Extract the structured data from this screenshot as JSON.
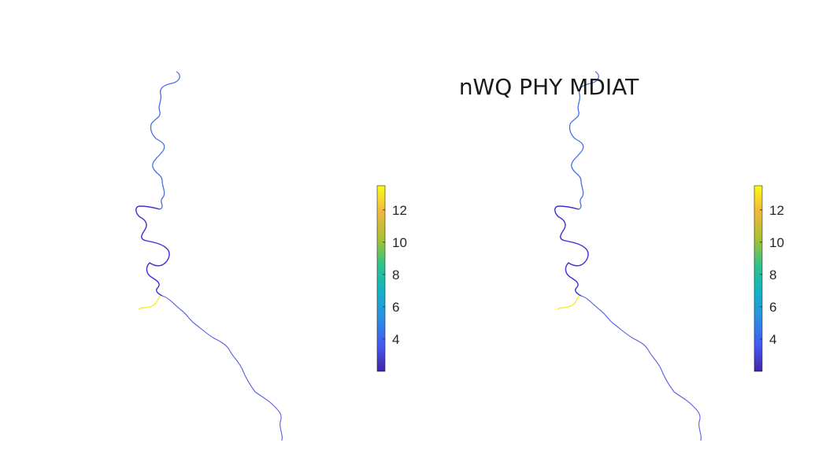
{
  "figure": {
    "title": "nWQ PHY MDIAT"
  },
  "chart_data": [
    {
      "type": "heatmap",
      "title": "",
      "xlabel": "",
      "ylabel": "",
      "colormap": "parula",
      "colorbar": {
        "range": [
          2,
          13.5
        ],
        "ticks": [
          4,
          6,
          8,
          10,
          12
        ],
        "tick_labels": [
          "4",
          "6",
          "8",
          "10",
          "12"
        ]
      },
      "axes_visible": false
    },
    {
      "type": "heatmap",
      "title": "nWQ PHY MDIAT",
      "xlabel": "",
      "ylabel": "",
      "colormap": "parula",
      "colorbar": {
        "range": [
          2,
          13.5
        ],
        "ticks": [
          4,
          6,
          8,
          10,
          12
        ],
        "tick_labels": [
          "4",
          "6",
          "8",
          "10",
          "12"
        ]
      },
      "axes_visible": false
    }
  ],
  "colors": {
    "colormap_stops": [
      "#3e26a8",
      "#4658f6",
      "#2991e3",
      "#12b3c6",
      "#2cc38d",
      "#a6c131",
      "#f1b83d",
      "#f9fb15"
    ],
    "river_low": "#3b2fd6",
    "river_mid": "#4a78e8",
    "river_high": "#f0ee22",
    "title_color": "#1a1a1a"
  }
}
